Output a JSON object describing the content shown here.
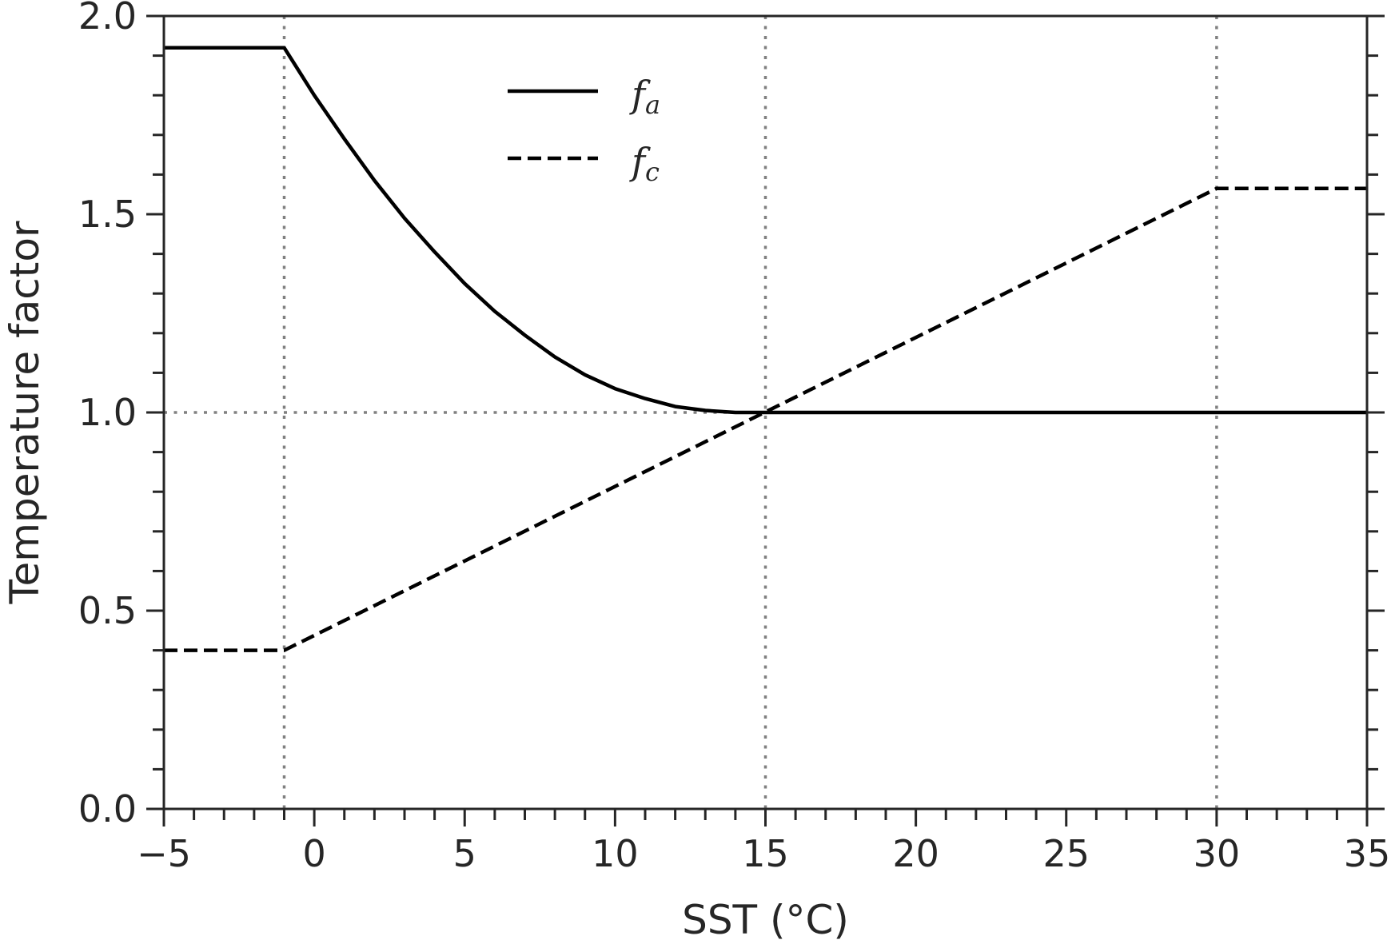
{
  "chart_data": {
    "type": "line",
    "xlabel": "SST (°C)",
    "ylabel": "Temperature factor",
    "xlim": [
      -5,
      35
    ],
    "ylim": [
      0,
      2
    ],
    "xticks": [
      -5,
      0,
      5,
      10,
      15,
      20,
      25,
      30,
      35
    ],
    "xtick_labels": [
      "−5",
      "0",
      "5",
      "10",
      "15",
      "20",
      "25",
      "30",
      "35"
    ],
    "yticks": [
      0,
      0.5,
      1.0,
      1.5,
      2.0
    ],
    "ytick_labels": [
      "0.0",
      "0.5",
      "1.0",
      "1.5",
      "2.0"
    ],
    "minor_x_step": 1,
    "minor_y_step": 0.1,
    "grid": false,
    "legend_position": "top-center",
    "reference_lines": {
      "vertical_x": [
        -1,
        15,
        30
      ],
      "horizontal_y": [
        1.0
      ]
    },
    "series": [
      {
        "name": "f",
        "subscript": "a",
        "style": "solid",
        "x": [
          -5,
          -1,
          0,
          1,
          2,
          3,
          4,
          5,
          6,
          7,
          8,
          9,
          10,
          11,
          12,
          13,
          14,
          15,
          35
        ],
        "y": [
          1.92,
          1.92,
          1.8,
          1.69,
          1.585,
          1.49,
          1.405,
          1.325,
          1.255,
          1.195,
          1.14,
          1.095,
          1.06,
          1.035,
          1.015,
          1.005,
          1.0,
          1.0,
          1.0
        ]
      },
      {
        "name": "f",
        "subscript": "c",
        "style": "dashed",
        "x": [
          -5,
          -1,
          30,
          35
        ],
        "y": [
          0.4,
          0.4,
          1.565,
          1.565
        ]
      }
    ]
  },
  "colors": {
    "series": "#000000",
    "axes": "#262626",
    "reference": "#808080"
  }
}
